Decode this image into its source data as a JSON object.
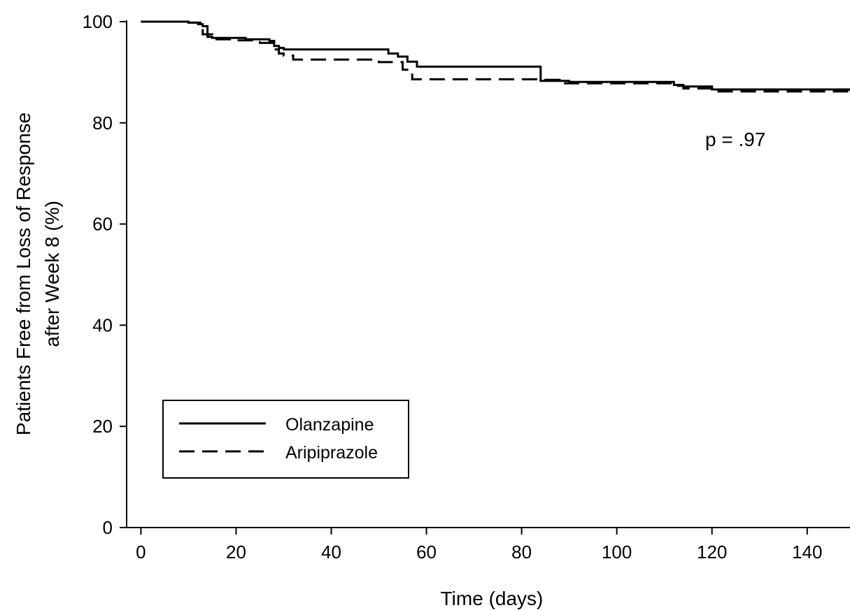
{
  "chart_data": {
    "type": "line",
    "title": "",
    "xlabel": "Time (days)",
    "ylabel_lines": [
      "Patients Free from Loss of Response",
      "after Week 8 (%)"
    ],
    "xlim": [
      -3,
      149
    ],
    "ylim": [
      0,
      100
    ],
    "xticks": [
      0,
      20,
      40,
      60,
      80,
      100,
      120,
      140
    ],
    "yticks": [
      0,
      20,
      40,
      60,
      80,
      100
    ],
    "grid": false,
    "legend_position": "bottom-left",
    "annotation": "p = .97",
    "series": [
      {
        "name": "Olanzapine",
        "line_style": "solid",
        "color": "#000000",
        "x": [
          0,
          10,
          12,
          13,
          14,
          15,
          18,
          22,
          27,
          28,
          29,
          30,
          52,
          54,
          56,
          58,
          84,
          90,
          112,
          114,
          120,
          149
        ],
        "y": [
          100,
          99.8,
          99.5,
          99.1,
          97,
          96.8,
          96.8,
          96.5,
          96.2,
          95.2,
          94.8,
          94.5,
          93.7,
          93.1,
          92.1,
          91.1,
          88.3,
          88.1,
          87.5,
          87.2,
          86.6,
          86.3
        ]
      },
      {
        "name": "Aripiprazole",
        "line_style": "dashed",
        "color": "#000000",
        "x": [
          0,
          10,
          13,
          15,
          20,
          25,
          28,
          29,
          30,
          32,
          50,
          55,
          57,
          84,
          88,
          112,
          114,
          120,
          149
        ],
        "y": [
          100,
          99.8,
          97.5,
          96.5,
          96.3,
          95.8,
          94.5,
          93.7,
          93.3,
          92.5,
          92,
          90.5,
          88.6,
          88.5,
          87.8,
          87.3,
          86.8,
          86.2,
          86.6
        ]
      }
    ]
  }
}
